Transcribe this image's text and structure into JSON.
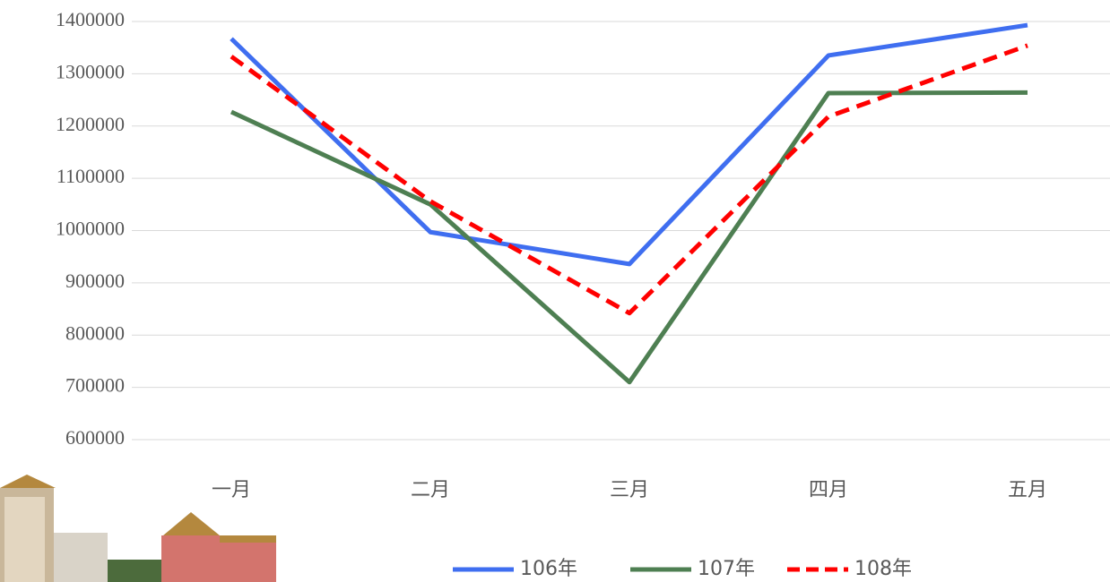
{
  "chart_data": {
    "type": "line",
    "categories": [
      "一月",
      "二月",
      "三月",
      "四月",
      "五月"
    ],
    "series": [
      {
        "name": "106年",
        "color": "#3f6ef0",
        "values": [
          1367000,
          997000,
          936000,
          1335000,
          1393000
        ]
      },
      {
        "name": "107年",
        "color": "#4e7f52",
        "values": [
          1227000,
          1050000,
          710000,
          1263000,
          1264000
        ]
      },
      {
        "name": "108年",
        "color": "#ff0000",
        "dashed": true,
        "values": [
          1333000,
          1056000,
          842000,
          1218000,
          1354000
        ]
      }
    ],
    "ylim": [
      600000,
      1400000
    ],
    "yticks": [
      600000,
      700000,
      800000,
      900000,
      1000000,
      1100000,
      1200000,
      1300000,
      1400000
    ],
    "grid": true,
    "legend": "bottom"
  }
}
